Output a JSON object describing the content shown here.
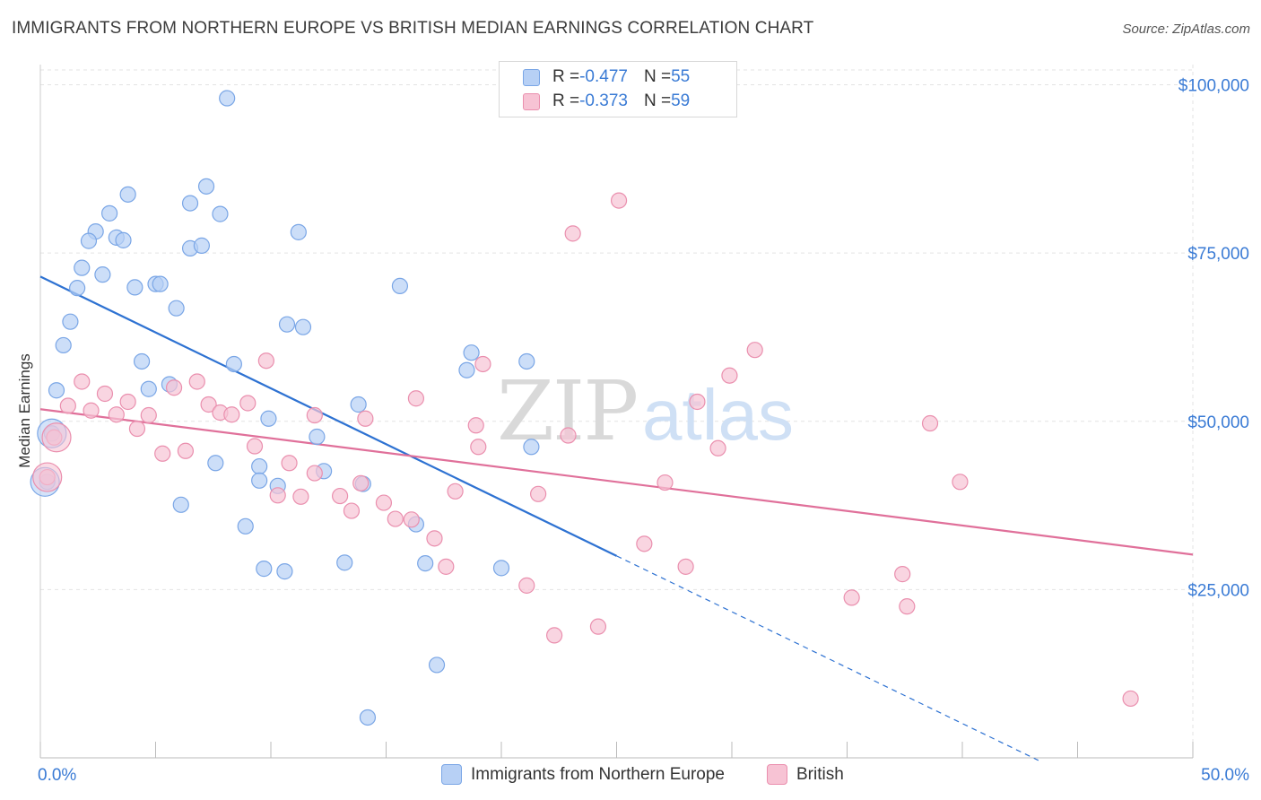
{
  "title": "IMMIGRANTS FROM NORTHERN EUROPE VS BRITISH MEDIAN EARNINGS CORRELATION CHART",
  "source": "Source: ZipAtlas.com",
  "watermark": {
    "zip": "ZIP",
    "atlas": "atlas"
  },
  "colors": {
    "blue_fill": "#b7d0f5",
    "blue_stroke": "#7aa6e6",
    "blue_line": "#2e72d2",
    "pink_fill": "#f7c3d4",
    "pink_stroke": "#ea8fae",
    "pink_line": "#e0709a",
    "axis_text": "#3a7bd5",
    "grid": "#e3e3e3"
  },
  "legend": {
    "rows": [
      {
        "r_label": "R = ",
        "r_value": "-0.477",
        "n_label": "N = ",
        "n_value": "55"
      },
      {
        "r_label": "R = ",
        "r_value": "-0.373",
        "n_label": "N = ",
        "n_value": "59"
      }
    ]
  },
  "bottom_legend": [
    "Immigrants from Northern Europe",
    "British"
  ],
  "chart_data": {
    "type": "scatter",
    "title": "IMMIGRANTS FROM NORTHERN EUROPE VS BRITISH MEDIAN EARNINGS CORRELATION CHART",
    "xlabel": "",
    "ylabel": "Median Earnings",
    "xlim": [
      0,
      50
    ],
    "ylim": [
      0,
      103000
    ],
    "x_tick_labels": [
      "0.0%",
      "50.0%"
    ],
    "y_ticks": [
      25000,
      50000,
      75000,
      100000
    ],
    "y_tick_labels": [
      "$25,000",
      "$50,000",
      "$75,000",
      "$100,000"
    ],
    "grid": true,
    "legend_position": "top-center",
    "series": [
      {
        "name": "Immigrants from Northern Europe",
        "r": -0.477,
        "n": 55,
        "trend": {
          "x0": 0,
          "y0": 71500,
          "x1": 25,
          "y1": 30000,
          "dashed_to_x": 43.3
        },
        "points": [
          [
            8.1,
            98000
          ],
          [
            3.8,
            83700
          ],
          [
            7.2,
            84900
          ],
          [
            6.5,
            82400
          ],
          [
            3.0,
            80900
          ],
          [
            7.8,
            80800
          ],
          [
            2.4,
            78200
          ],
          [
            2.1,
            76800
          ],
          [
            3.3,
            77300
          ],
          [
            3.6,
            76900
          ],
          [
            11.2,
            78100
          ],
          [
            6.5,
            75700
          ],
          [
            7.0,
            76100
          ],
          [
            1.8,
            72800
          ],
          [
            2.7,
            71800
          ],
          [
            4.1,
            69900
          ],
          [
            5.0,
            70400
          ],
          [
            5.2,
            70400
          ],
          [
            1.6,
            69800
          ],
          [
            15.6,
            70100
          ],
          [
            5.9,
            66800
          ],
          [
            1.3,
            64800
          ],
          [
            10.7,
            64400
          ],
          [
            11.4,
            64000
          ],
          [
            1.0,
            61300
          ],
          [
            18.7,
            60200
          ],
          [
            21.1,
            58900
          ],
          [
            4.4,
            58900
          ],
          [
            8.4,
            58500
          ],
          [
            18.5,
            57600
          ],
          [
            5.6,
            55500
          ],
          [
            4.7,
            54800
          ],
          [
            0.7,
            54600
          ],
          [
            13.8,
            52500
          ],
          [
            9.9,
            50400
          ],
          [
            12.0,
            47700
          ],
          [
            21.3,
            46200
          ],
          [
            0.5,
            48200
          ],
          [
            7.6,
            43800
          ],
          [
            9.5,
            43300
          ],
          [
            12.3,
            42600
          ],
          [
            9.5,
            41200
          ],
          [
            10.3,
            40400
          ],
          [
            14.0,
            40700
          ],
          [
            6.1,
            37600
          ],
          [
            8.9,
            34400
          ],
          [
            16.3,
            34700
          ],
          [
            13.2,
            29000
          ],
          [
            16.7,
            28900
          ],
          [
            20.0,
            28200
          ],
          [
            9.7,
            28100
          ],
          [
            10.6,
            27700
          ],
          [
            17.2,
            13800
          ],
          [
            14.2,
            6000
          ],
          [
            0.3,
            41000
          ]
        ],
        "large_points": [
          [
            0.5,
            48200
          ],
          [
            0.2,
            41000
          ]
        ]
      },
      {
        "name": "British",
        "r": -0.373,
        "n": 59,
        "trend": {
          "x0": 0,
          "y0": 51800,
          "x1": 50,
          "y1": 30200
        },
        "points": [
          [
            25.1,
            82800
          ],
          [
            23.1,
            77900
          ],
          [
            31.0,
            60600
          ],
          [
            29.9,
            56800
          ],
          [
            9.8,
            59000
          ],
          [
            19.2,
            58500
          ],
          [
            1.8,
            55900
          ],
          [
            6.8,
            55900
          ],
          [
            5.8,
            55000
          ],
          [
            2.8,
            54100
          ],
          [
            16.3,
            53400
          ],
          [
            28.5,
            52900
          ],
          [
            9.0,
            52700
          ],
          [
            3.8,
            52900
          ],
          [
            7.3,
            52500
          ],
          [
            1.2,
            52300
          ],
          [
            2.2,
            51600
          ],
          [
            3.3,
            51000
          ],
          [
            7.8,
            51300
          ],
          [
            8.3,
            51000
          ],
          [
            11.9,
            50900
          ],
          [
            14.1,
            50400
          ],
          [
            4.7,
            50900
          ],
          [
            38.6,
            49700
          ],
          [
            18.9,
            49400
          ],
          [
            4.2,
            48900
          ],
          [
            22.9,
            47900
          ],
          [
            9.3,
            46300
          ],
          [
            19.0,
            46200
          ],
          [
            29.4,
            46000
          ],
          [
            6.3,
            45600
          ],
          [
            5.3,
            45200
          ],
          [
            10.8,
            43800
          ],
          [
            11.9,
            42300
          ],
          [
            27.1,
            40900
          ],
          [
            39.9,
            41000
          ],
          [
            13.9,
            40800
          ],
          [
            18.0,
            39600
          ],
          [
            21.6,
            39200
          ],
          [
            10.3,
            39000
          ],
          [
            11.3,
            38800
          ],
          [
            13.0,
            38900
          ],
          [
            14.9,
            37900
          ],
          [
            13.5,
            36700
          ],
          [
            15.4,
            35500
          ],
          [
            16.1,
            35400
          ],
          [
            17.1,
            32600
          ],
          [
            26.2,
            31800
          ],
          [
            28.0,
            28400
          ],
          [
            17.6,
            28400
          ],
          [
            37.4,
            27300
          ],
          [
            21.1,
            25600
          ],
          [
            35.2,
            23800
          ],
          [
            37.6,
            22500
          ],
          [
            22.3,
            18200
          ],
          [
            24.2,
            19500
          ],
          [
            47.3,
            8800
          ],
          [
            0.6,
            47600
          ],
          [
            0.3,
            41700
          ]
        ],
        "large_points": [
          [
            0.7,
            47600
          ],
          [
            0.3,
            41700
          ]
        ]
      }
    ]
  }
}
